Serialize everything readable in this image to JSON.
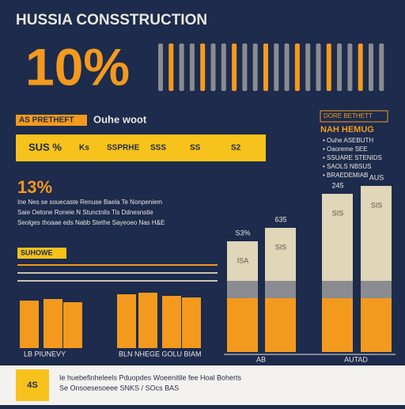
{
  "header": {
    "title": "HUSSIA CONSSTRUCTION",
    "big_stat": "10%"
  },
  "section1": {
    "tag": "AS PRETHEFT",
    "heading": "Ouhe woot",
    "banner": [
      "SUS %",
      "Ks",
      "SSPRHE",
      "SSS",
      "SS",
      "S2"
    ]
  },
  "sidebar": {
    "tag": "DORE BETHETT",
    "heading": "NAH HEMUG",
    "lines": [
      "• Ouhe ASEBUTH",
      "• Oaoreme SEE",
      "• SSUARE STENIDS",
      "• SAOLS NBSUS",
      "• BRAEDEMIAB"
    ]
  },
  "section2": {
    "stat": "13%",
    "lines": [
      "Ine Nes se souecaste Renuse Baela Te Nonpeniem",
      "Saie Oetone Roneie N Stunctnlis Tis Ddnesnstie",
      "Seolges thoaae eds Nabb Stethe Sayeoeo Nas H&E"
    ]
  },
  "section3": {
    "tag": "SUHOWE",
    "labels": [
      "LB PIUNEVY",
      "BLN NHEGE GOLU BIAM"
    ]
  },
  "right_chart": {
    "labels": [
      "S3%",
      "635",
      "245",
      "AUS"
    ],
    "inner": [
      "ISA",
      "SIS",
      "SIS",
      "SIS"
    ],
    "base": [
      "AB",
      "AUTAD"
    ]
  },
  "footer": {
    "icon": "4S",
    "lines": [
      "Ie huebefinheleels Pduopdes Woeenitile fee Hoal  Boherts",
      "Se Onsoesesoeee SNKS  / SOcs  BAS"
    ]
  }
}
